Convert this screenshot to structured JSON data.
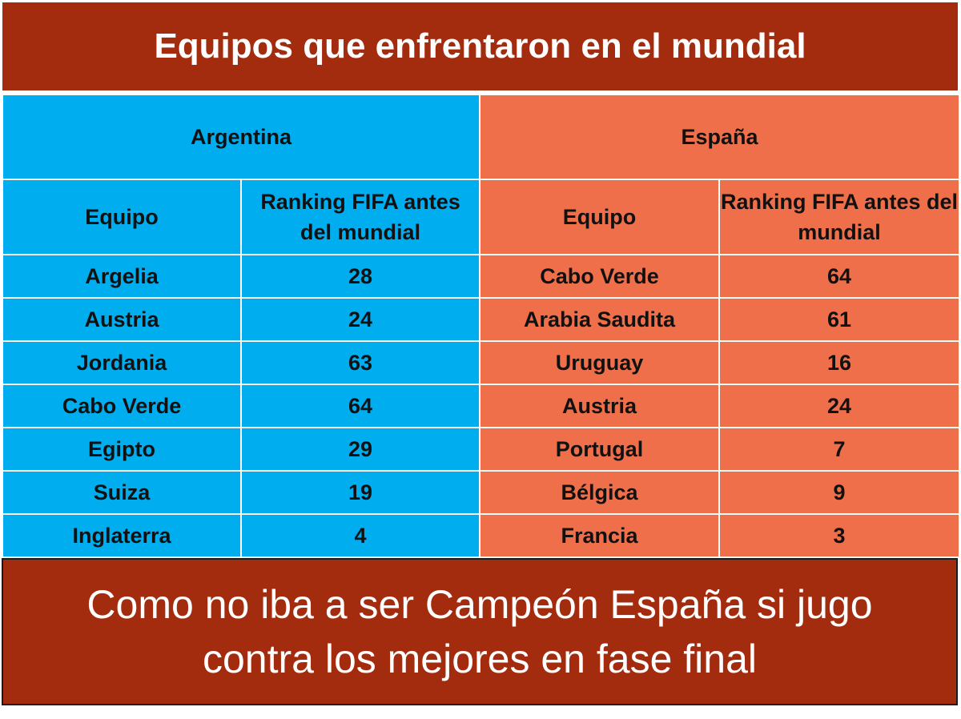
{
  "title": "Equipos que enfrentaron en el mundial",
  "argentina": {
    "team": "Argentina",
    "col_equipo": "Equipo",
    "col_ranking": "Ranking FIFA antes del mundial",
    "rows": [
      {
        "equipo": "Argelia",
        "ranking": "28"
      },
      {
        "equipo": "Austria",
        "ranking": "24"
      },
      {
        "equipo": "Jordania",
        "ranking": "63"
      },
      {
        "equipo": "Cabo Verde",
        "ranking": "64"
      },
      {
        "equipo": "Egipto",
        "ranking": "29"
      },
      {
        "equipo": "Suiza",
        "ranking": "19"
      },
      {
        "equipo": "Inglaterra",
        "ranking": "4"
      }
    ]
  },
  "espana": {
    "team": "España",
    "col_equipo": "Equipo",
    "col_ranking": "Ranking FIFA antes del mundial",
    "rows": [
      {
        "equipo": "Cabo Verde",
        "ranking": "64"
      },
      {
        "equipo": "Arabia Saudita",
        "ranking": "61"
      },
      {
        "equipo": "Uruguay",
        "ranking": "16"
      },
      {
        "equipo": "Austria",
        "ranking": "24"
      },
      {
        "equipo": "Portugal",
        "ranking": "7"
      },
      {
        "equipo": "Bélgica",
        "ranking": "9"
      },
      {
        "equipo": "Francia",
        "ranking": "3"
      }
    ]
  },
  "footer": "Como no iba a ser Campeón España si jugo contra los mejores en fase final",
  "colors": {
    "banner": "#a32c0f",
    "argentina": "#00adef",
    "espana": "#ef6f4b"
  }
}
